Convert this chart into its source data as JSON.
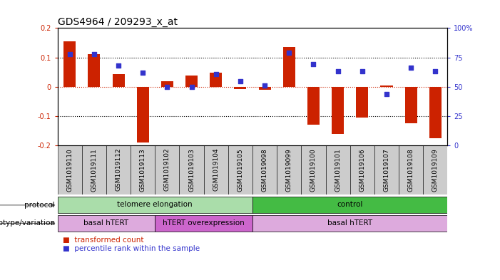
{
  "title": "GDS4964 / 209293_x_at",
  "samples": [
    "GSM1019110",
    "GSM1019111",
    "GSM1019112",
    "GSM1019113",
    "GSM1019102",
    "GSM1019103",
    "GSM1019104",
    "GSM1019105",
    "GSM1019098",
    "GSM1019099",
    "GSM1019100",
    "GSM1019101",
    "GSM1019106",
    "GSM1019107",
    "GSM1019108",
    "GSM1019109"
  ],
  "transformed_count": [
    0.155,
    0.112,
    0.042,
    -0.19,
    0.018,
    0.038,
    0.048,
    -0.008,
    -0.01,
    0.135,
    -0.13,
    -0.16,
    -0.105,
    0.005,
    -0.125,
    -0.175
  ],
  "percentile_right": [
    78,
    78,
    68,
    62,
    50,
    50,
    61,
    55,
    51,
    79,
    69,
    63,
    63,
    44,
    66,
    63
  ],
  "ylim": [
    -0.2,
    0.2
  ],
  "yticks": [
    -0.2,
    -0.1,
    0.0,
    0.1,
    0.2
  ],
  "ytick_labels_left": [
    "-0.2",
    "-0.1",
    "0",
    "0.1",
    "0.2"
  ],
  "ytick_labels_right": [
    "0",
    "25",
    "50",
    "75",
    "100%"
  ],
  "bar_color": "#cc2200",
  "dot_color": "#3333cc",
  "protocol_labels": [
    {
      "label": "telomere elongation",
      "start": 0,
      "end": 8,
      "color": "#aaddaa"
    },
    {
      "label": "control",
      "start": 8,
      "end": 16,
      "color": "#44bb44"
    }
  ],
  "genotype_labels": [
    {
      "label": "basal hTERT",
      "start": 0,
      "end": 4,
      "color": "#ddaadd"
    },
    {
      "label": "hTERT overexpression",
      "start": 4,
      "end": 8,
      "color": "#cc66cc"
    },
    {
      "label": "basal hTERT",
      "start": 8,
      "end": 16,
      "color": "#ddaadd"
    }
  ],
  "legend1": "transformed count",
  "legend2": "percentile rank within the sample",
  "bg_color": "#ffffff",
  "zero_line_color": "#cc2200",
  "title_fontsize": 10,
  "tick_fontsize": 7,
  "label_fontsize": 7.5,
  "sample_label_fontsize": 6.5
}
